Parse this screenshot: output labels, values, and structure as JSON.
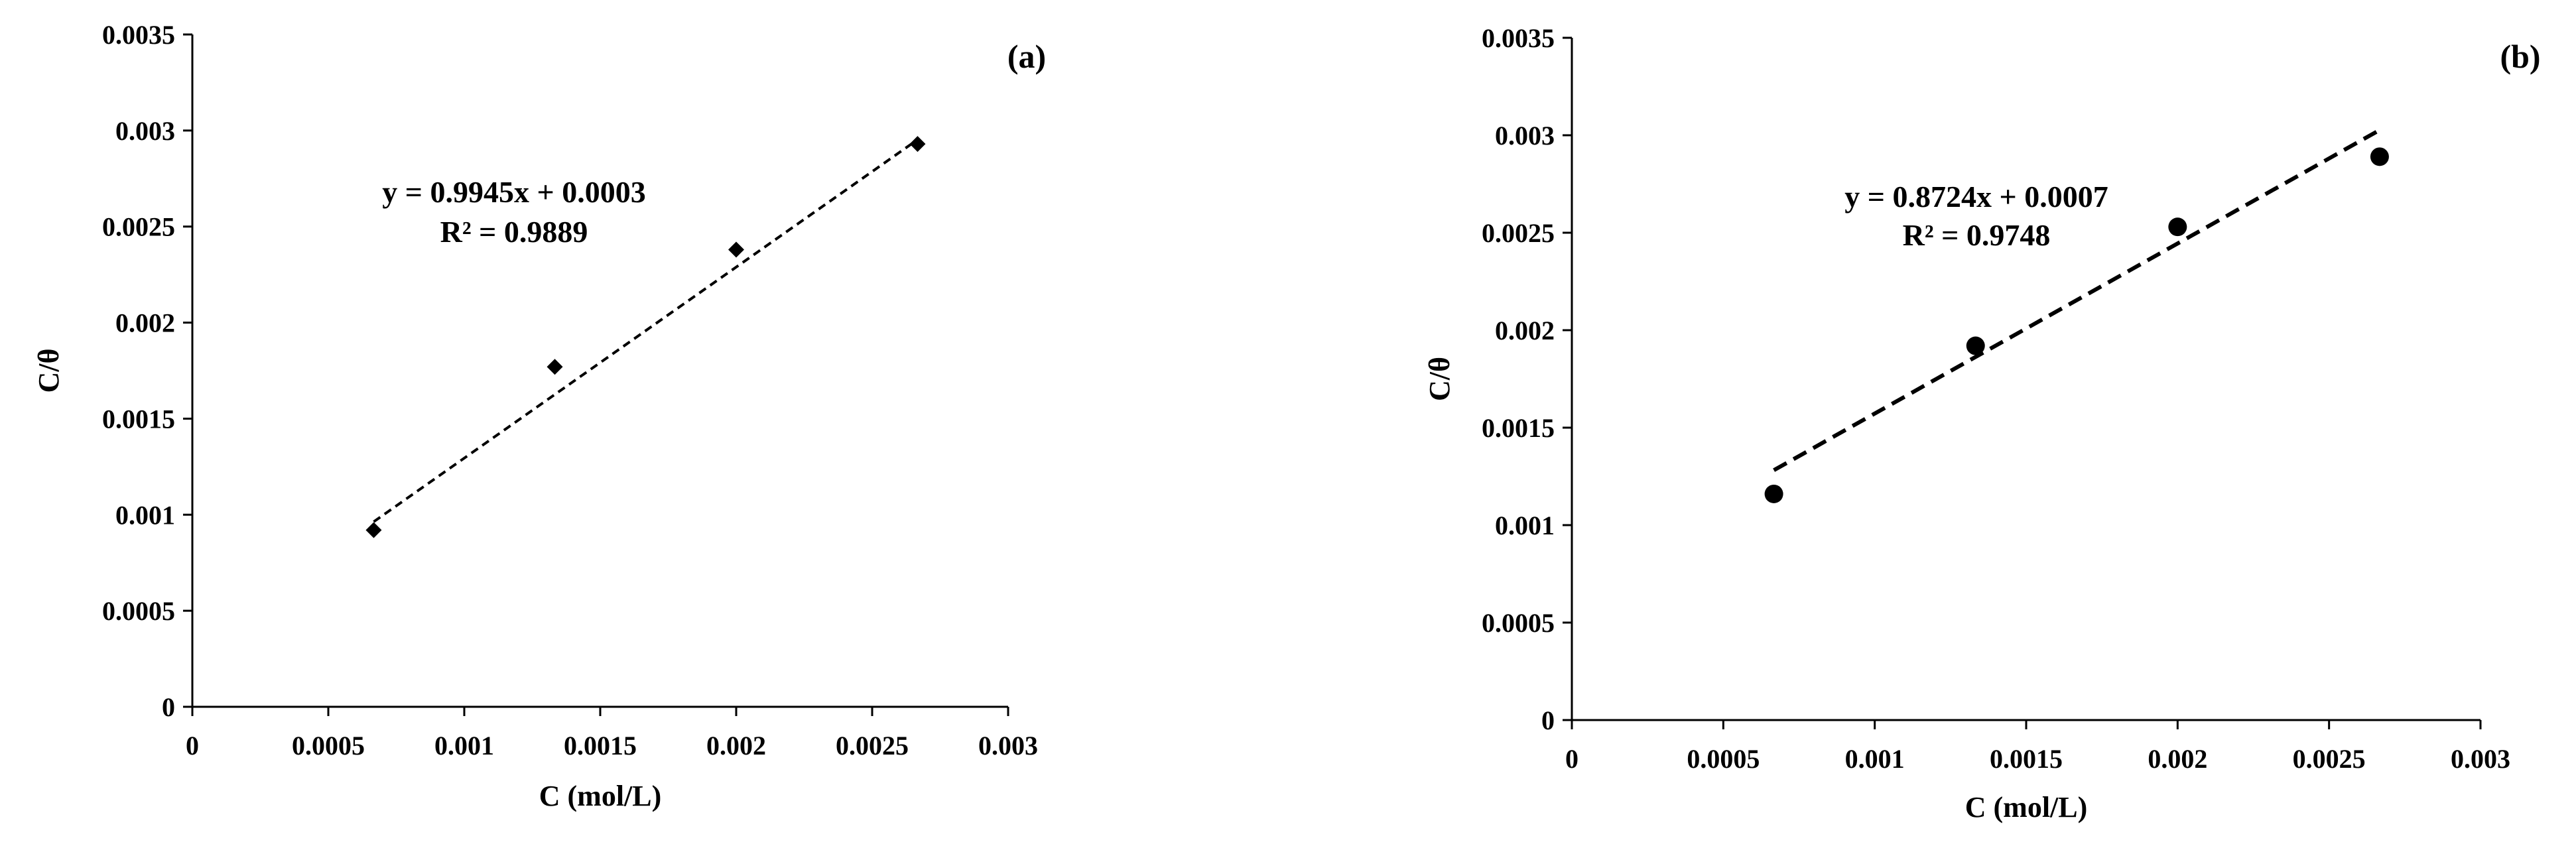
{
  "chart_data": [
    {
      "type": "scatter",
      "panel_label": "(a)",
      "xlabel": "C (mol/L)",
      "ylabel": "C/θ",
      "xlim": [
        0,
        0.003
      ],
      "ylim": [
        0,
        0.0035
      ],
      "x_ticks": [
        "0",
        "0.0005",
        "0.001",
        "0.0015",
        "0.002",
        "0.0025",
        "0.003"
      ],
      "y_ticks": [
        "0",
        "0.0005",
        "0.001",
        "0.0015",
        "0.002",
        "0.0025",
        "0.003",
        "0.0035"
      ],
      "marker": "diamond",
      "grid": false,
      "series": [
        {
          "x": [
            0.000667,
            0.001333,
            0.002,
            0.002667
          ],
          "y": [
            0.00092,
            0.00177,
            0.00238,
            0.00293
          ]
        }
      ],
      "trendline": {
        "slope": 0.9945,
        "intercept": 0.0003,
        "x_range": [
          0.000667,
          0.002667
        ],
        "style": "dashed"
      },
      "annotation": {
        "equation": "y = 0.9945x + 0.0003",
        "r2": "R² = 0.9889"
      }
    },
    {
      "type": "scatter",
      "panel_label": "(b)",
      "xlabel": "C (mol/L)",
      "ylabel": "C/θ",
      "xlim": [
        0,
        0.003
      ],
      "ylim": [
        0,
        0.0035
      ],
      "x_ticks": [
        "0",
        "0.0005",
        "0.001",
        "0.0015",
        "0.002",
        "0.0025",
        "0.003"
      ],
      "y_ticks": [
        "0",
        "0.0005",
        "0.001",
        "0.0015",
        "0.002",
        "0.0025",
        "0.003",
        "0.0035"
      ],
      "marker": "circle",
      "grid": false,
      "series": [
        {
          "x": [
            0.000667,
            0.001333,
            0.002,
            0.002667
          ],
          "y": [
            0.00116,
            0.00192,
            0.00253,
            0.00289
          ]
        }
      ],
      "trendline": {
        "slope": 0.8724,
        "intercept": 0.0007,
        "x_range": [
          0.000667,
          0.002667
        ],
        "style": "dashed"
      },
      "annotation": {
        "equation": "y = 0.8724x + 0.0007",
        "r2": "R² = 0.9748"
      }
    }
  ]
}
